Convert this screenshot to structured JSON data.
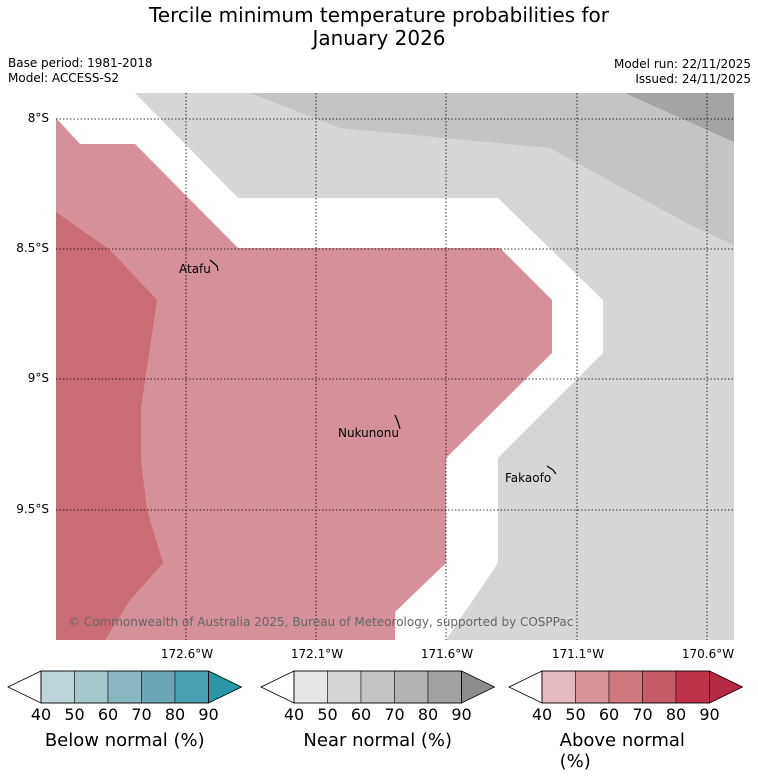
{
  "title_line1": "Tercile minimum temperature probabilities for",
  "title_line2": "January 2026",
  "base_period": "Base period: 1981-2018",
  "model": "Model: ACCESS-S2",
  "model_run": "Model run: 22/11/2025",
  "issued": "Issued: 24/11/2025",
  "lat_labels": [
    "8°S",
    "8.5°S",
    "9°S",
    "9.5°S"
  ],
  "lon_labels": [
    "172.6°W",
    "172.1°W",
    "171.6°W",
    "171.1°W",
    "170.6°W"
  ],
  "places": [
    "Atafu",
    "Nukunonu",
    "Fakaofo"
  ],
  "copyright": "© Commonwealth of Australia 2025, Bureau of Meteorology, supported by COSPPac",
  "colorbars": [
    {
      "title": "Below normal (%)",
      "colors": [
        "#bcd4da",
        "#a5c7cc",
        "#88b7c0",
        "#6aa6b3",
        "#48a0b0",
        "#2a97a6"
      ],
      "ticks": [
        "40",
        "50",
        "60",
        "70",
        "80",
        "90"
      ]
    },
    {
      "title": "Near normal (%)",
      "colors": [
        "#e6e6e6",
        "#d6d6d6",
        "#c4c4c4",
        "#b3b3b3",
        "#a2a2a2",
        "#8c8c8c"
      ],
      "ticks": [
        "40",
        "50",
        "60",
        "70",
        "80",
        "90"
      ]
    },
    {
      "title": "Above normal (%)",
      "colors": [
        "#e5b9be",
        "#d8929a",
        "#cf7880",
        "#c65c68",
        "#bd3248",
        "#b52944"
      ],
      "ticks": [
        "40",
        "50",
        "60",
        "70",
        "80",
        "90"
      ]
    }
  ]
}
